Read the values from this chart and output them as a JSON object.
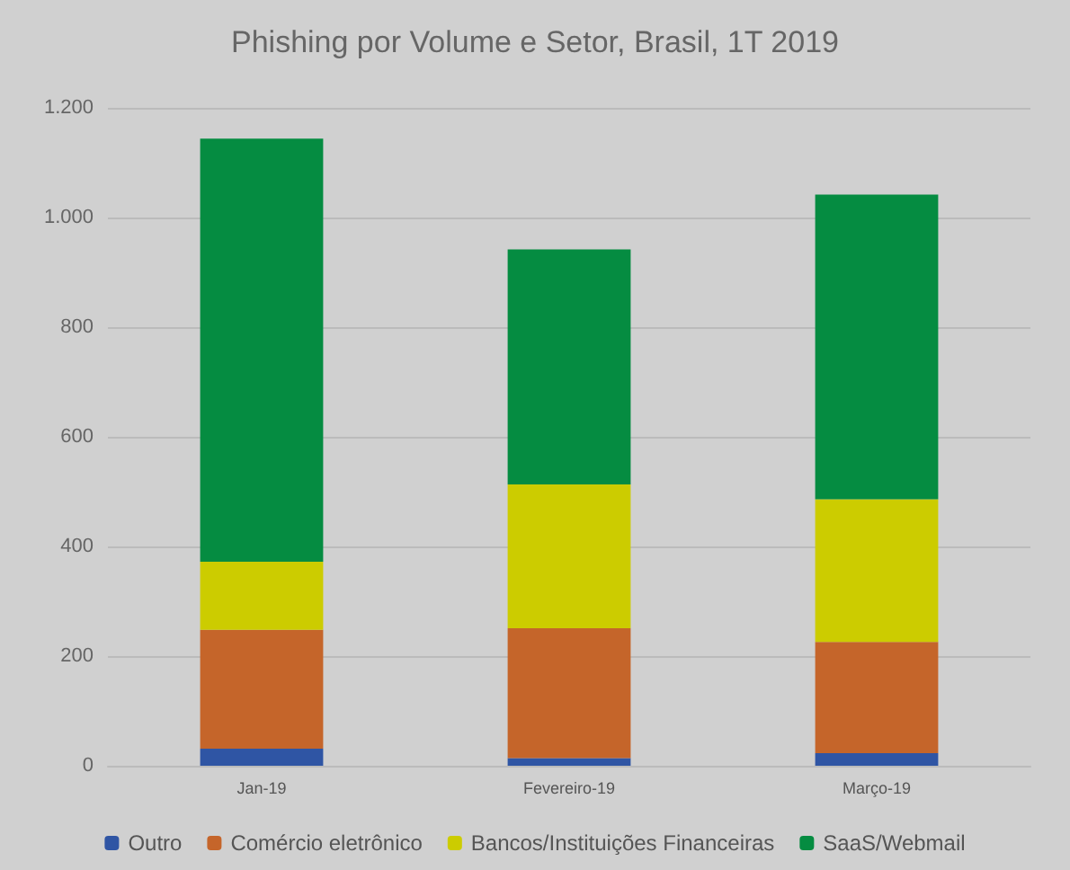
{
  "chart_data": {
    "type": "bar",
    "title": "Phishing por Volume e Setor, Brasil, 1T 2019",
    "categories": [
      "Jan-19",
      "Fevereiro-19",
      "Março-19"
    ],
    "stacked": true,
    "series": [
      {
        "name": "Outro",
        "color": "#2f55a4",
        "values": [
          31,
          14,
          23
        ]
      },
      {
        "name": "Comércio eletrônico",
        "color": "#c5652a",
        "values": [
          217,
          237,
          203
        ]
      },
      {
        "name": "Bancos/Instituições Financeiras",
        "color": "#cccc00",
        "values": [
          124,
          262,
          260
        ]
      },
      {
        "name": "SaaS/Webmail",
        "color": "#058c41",
        "values": [
          772,
          429,
          556
        ]
      }
    ],
    "ylim": [
      0,
      1200
    ],
    "yticks": [
      0,
      200,
      400,
      600,
      800,
      {
        "value": 1000,
        "label": "1.000"
      },
      {
        "value": 1200,
        "label": "1.200"
      }
    ],
    "grid": "y",
    "legend": "bottom"
  }
}
